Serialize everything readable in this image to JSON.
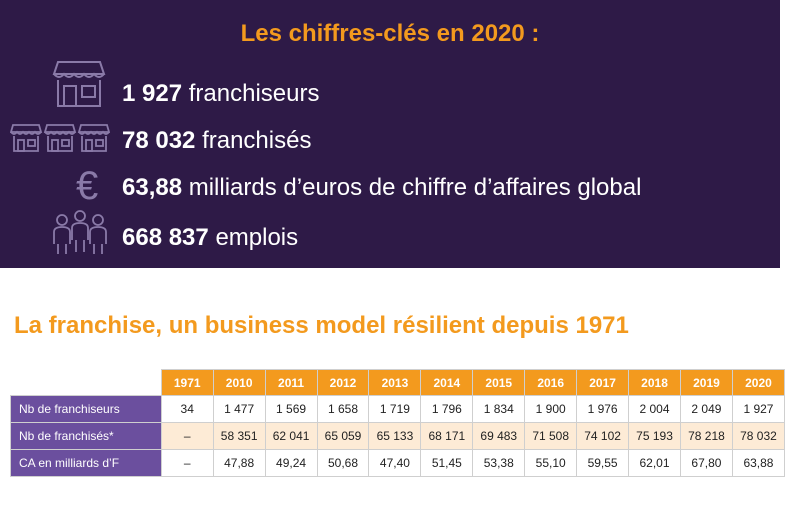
{
  "panel": {
    "title": "Les chiffres-clés en 2020 :",
    "stats": [
      {
        "value": "1 927",
        "label": "franchiseurs",
        "icon": "storefront-icon"
      },
      {
        "value": "78 032",
        "label": "franchisés",
        "icon": "three-stores-icon"
      },
      {
        "value": "63,88",
        "label": "milliards d’euros de chiffre d’affaires global",
        "icon": "euro-icon"
      },
      {
        "value": "668 837",
        "label": "emplois",
        "icon": "people-icon"
      }
    ]
  },
  "heading": "La franchise, un business model résilient depuis 1971",
  "colors": {
    "panel_bg": "#2e1a47",
    "accent": "#f39a1e",
    "row_label_bg": "#6b4f9e",
    "alt_row_bg": "#fdebd6"
  },
  "chart_data": {
    "type": "table",
    "categories": [
      "1971",
      "2010",
      "2011",
      "2012",
      "2013",
      "2014",
      "2015",
      "2016",
      "2017",
      "2018",
      "2019",
      "2020"
    ],
    "series": [
      {
        "name": "Nb de franchiseurs",
        "values": [
          "34",
          "1 477",
          "1 569",
          "1 658",
          "1 719",
          "1 796",
          "1 834",
          "1 900",
          "1 976",
          "2 004",
          "2 049",
          "1 927"
        ]
      },
      {
        "name": "Nb de franchisés*",
        "values": [
          "–",
          "58 351",
          "62 041",
          "65 059",
          "65 133",
          "68 171",
          "69 483",
          "71 508",
          "74 102",
          "75 193",
          "78 218",
          "78 032"
        ]
      },
      {
        "name": "CA en milliards d’F",
        "values": [
          "–",
          "47,88",
          "49,24",
          "50,68",
          "47,40",
          "51,45",
          "53,38",
          "55,10",
          "59,55",
          "62,01",
          "67,80",
          "63,88"
        ]
      }
    ]
  }
}
